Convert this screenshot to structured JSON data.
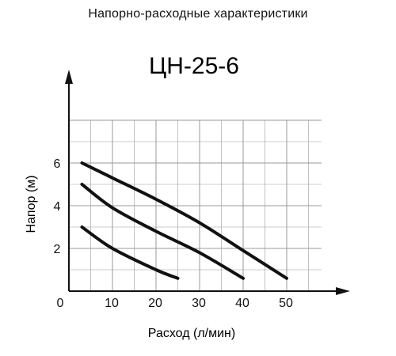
{
  "header": {
    "text": "Напорно-расходные характеристики"
  },
  "chart_data": {
    "type": "line",
    "title": "ЦН-25-6",
    "xlabel": "Расход (л/мин)",
    "ylabel": "Напор (м)",
    "xlim": [
      0,
      60
    ],
    "ylim": [
      0,
      8
    ],
    "x_ticks": [
      0,
      10,
      20,
      30,
      40,
      50
    ],
    "y_ticks": [
      2,
      4,
      6
    ],
    "grid": true,
    "series": [
      {
        "x": [
          3,
          10,
          20,
          25
        ],
        "y": [
          3.0,
          2.0,
          1.0,
          0.6
        ]
      },
      {
        "x": [
          3,
          10,
          20,
          30,
          40
        ],
        "y": [
          5.0,
          3.9,
          2.8,
          1.8,
          0.6
        ]
      },
      {
        "x": [
          3,
          10,
          20,
          30,
          40,
          50
        ],
        "y": [
          6.0,
          5.3,
          4.3,
          3.2,
          1.9,
          0.6
        ]
      }
    ],
    "colors": {
      "line": "#111111",
      "grid": "#9a9a9a",
      "axis": "#111111"
    }
  }
}
